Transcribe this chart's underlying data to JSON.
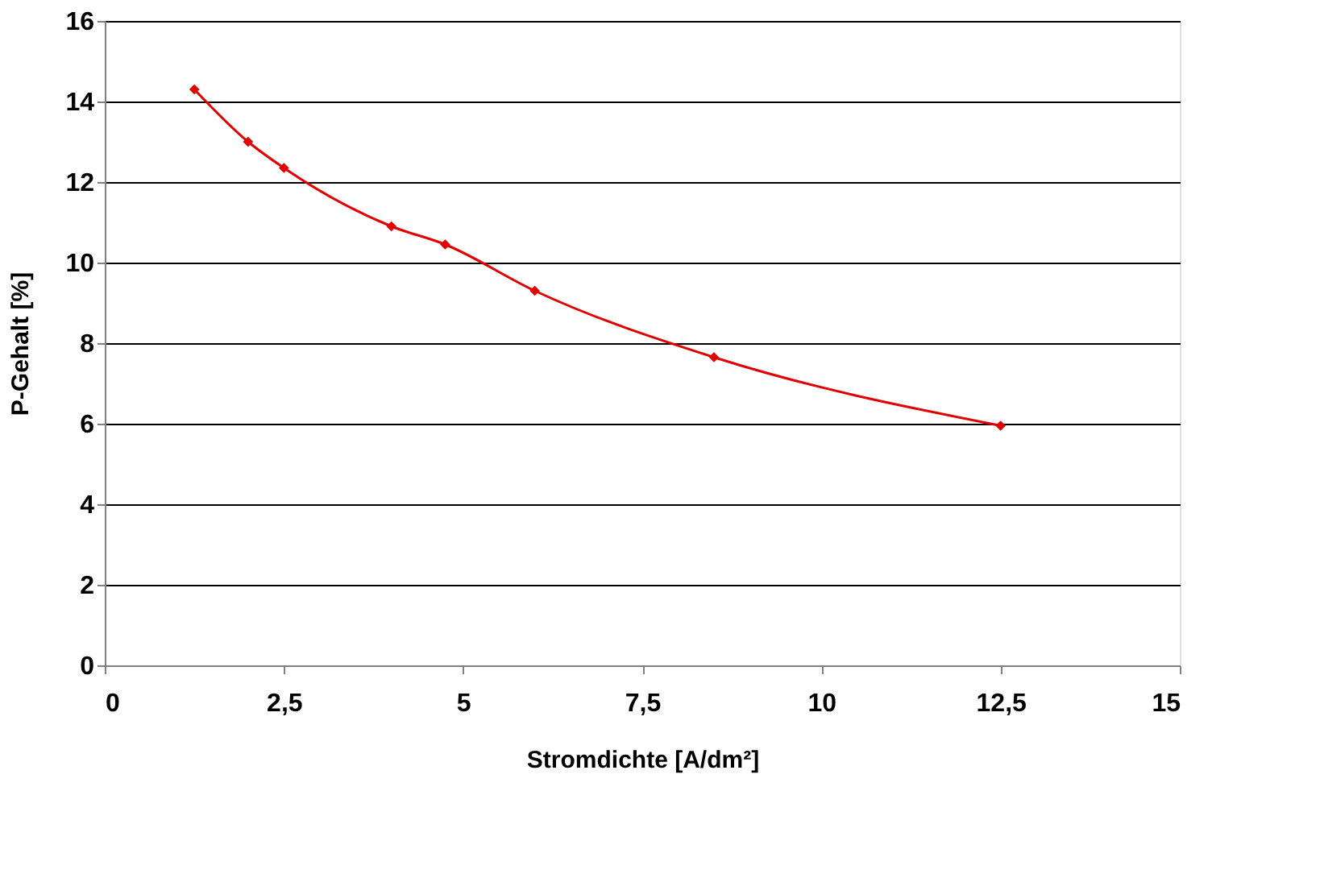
{
  "chart_data": {
    "type": "line",
    "xlabel": "Stromdichte [A/dm²]",
    "ylabel": "P-Gehalt [%]",
    "x": [
      1.25,
      2,
      2.5,
      4,
      4.75,
      6,
      8.5,
      12.5
    ],
    "series": [
      {
        "color": "#e00000",
        "values": [
          14.3,
          13.0,
          12.35,
          10.9,
          10.45,
          9.3,
          7.65,
          5.95
        ]
      }
    ],
    "xlim": [
      0,
      15
    ],
    "xticks": [
      0,
      {
        "value": 2.5,
        "label": "2,5"
      },
      5,
      {
        "value": 7.5,
        "label": "7,5"
      },
      10,
      {
        "value": 12.5,
        "label": "12,5"
      },
      15
    ],
    "ylim": [
      0,
      16
    ],
    "yticks": [
      0,
      2,
      4,
      6,
      8,
      10,
      12,
      14,
      16
    ],
    "grid": "y",
    "marker": "diamond",
    "line_style": "solid"
  }
}
